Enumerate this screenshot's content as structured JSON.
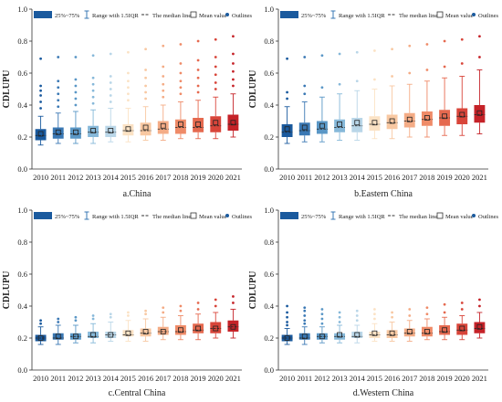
{
  "legend": {
    "box_label": "25%~75%",
    "whisker_label": "Range  with 1.5IQR",
    "median_label": "The median line",
    "mean_label": "Mean value",
    "outlier_label": "Outlines"
  },
  "chart_data": [
    {
      "type": "box",
      "caption": "a.China",
      "ylabel": "CDLUPU",
      "ylim": [
        0,
        1.0
      ],
      "yticks": [
        0.0,
        0.2,
        0.4,
        0.6,
        0.8,
        1.0
      ],
      "categories": [
        "2010",
        "2011",
        "2012",
        "2013",
        "2014",
        "2015",
        "2016",
        "2017",
        "2018",
        "2019",
        "2020",
        "2021"
      ],
      "colors": [
        "#1a5a9e",
        "#3a78b4",
        "#5a97c6",
        "#86b8d9",
        "#b9d6e8",
        "#fbe2c4",
        "#f8c8a2",
        "#f4ac86",
        "#ef8b68",
        "#e5694f",
        "#d8453a",
        "#c52228"
      ],
      "boxes": [
        {
          "q1": 0.18,
          "q3": 0.25,
          "median": 0.21,
          "mean": 0.22,
          "low": 0.15,
          "high": 0.33,
          "outliers": [
            0.38,
            0.42,
            0.46,
            0.49,
            0.52,
            0.69
          ]
        },
        {
          "q1": 0.19,
          "q3": 0.26,
          "median": 0.22,
          "mean": 0.23,
          "low": 0.16,
          "high": 0.35,
          "outliers": [
            0.39,
            0.43,
            0.47,
            0.51,
            0.55,
            0.7
          ]
        },
        {
          "q1": 0.19,
          "q3": 0.26,
          "median": 0.22,
          "mean": 0.23,
          "low": 0.16,
          "high": 0.36,
          "outliers": [
            0.4,
            0.44,
            0.48,
            0.52,
            0.56,
            0.7
          ]
        },
        {
          "q1": 0.2,
          "q3": 0.27,
          "median": 0.23,
          "mean": 0.24,
          "low": 0.16,
          "high": 0.37,
          "outliers": [
            0.41,
            0.45,
            0.49,
            0.53,
            0.57,
            0.71
          ]
        },
        {
          "q1": 0.2,
          "q3": 0.27,
          "median": 0.23,
          "mean": 0.24,
          "low": 0.17,
          "high": 0.38,
          "outliers": [
            0.42,
            0.46,
            0.5,
            0.54,
            0.58,
            0.72
          ]
        },
        {
          "q1": 0.21,
          "q3": 0.28,
          "median": 0.24,
          "mean": 0.25,
          "low": 0.17,
          "high": 0.38,
          "outliers": [
            0.43,
            0.47,
            0.51,
            0.55,
            0.6,
            0.73
          ]
        },
        {
          "q1": 0.21,
          "q3": 0.29,
          "median": 0.24,
          "mean": 0.26,
          "low": 0.18,
          "high": 0.39,
          "outliers": [
            0.44,
            0.48,
            0.52,
            0.57,
            0.62,
            0.75
          ]
        },
        {
          "q1": 0.22,
          "q3": 0.3,
          "median": 0.25,
          "mean": 0.27,
          "low": 0.18,
          "high": 0.4,
          "outliers": [
            0.45,
            0.49,
            0.53,
            0.58,
            0.64,
            0.77
          ]
        },
        {
          "q1": 0.22,
          "q3": 0.31,
          "median": 0.26,
          "mean": 0.28,
          "low": 0.19,
          "high": 0.42,
          "outliers": [
            0.47,
            0.51,
            0.55,
            0.6,
            0.66,
            0.78
          ]
        },
        {
          "q1": 0.23,
          "q3": 0.32,
          "median": 0.26,
          "mean": 0.28,
          "low": 0.19,
          "high": 0.43,
          "outliers": [
            0.48,
            0.52,
            0.57,
            0.62,
            0.68,
            0.8
          ]
        },
        {
          "q1": 0.23,
          "q3": 0.33,
          "median": 0.27,
          "mean": 0.29,
          "low": 0.19,
          "high": 0.45,
          "outliers": [
            0.5,
            0.54,
            0.59,
            0.64,
            0.7,
            0.81
          ]
        },
        {
          "q1": 0.24,
          "q3": 0.34,
          "median": 0.28,
          "mean": 0.29,
          "low": 0.2,
          "high": 0.47,
          "outliers": [
            0.52,
            0.56,
            0.61,
            0.66,
            0.72,
            0.83
          ]
        }
      ]
    },
    {
      "type": "box",
      "caption": "b.Eastern China",
      "ylabel": "CDLUPU",
      "ylim": [
        0,
        1.0
      ],
      "yticks": [
        0.0,
        0.2,
        0.4,
        0.6,
        0.8,
        1.0
      ],
      "categories": [
        "2010",
        "2011",
        "2012",
        "2013",
        "2014",
        "2015",
        "2016",
        "2017",
        "2018",
        "2019",
        "2020",
        "2021"
      ],
      "colors": [
        "#1a5a9e",
        "#3a78b4",
        "#5a97c6",
        "#86b8d9",
        "#b9d6e8",
        "#fbe2c4",
        "#f8c8a2",
        "#f4ac86",
        "#ef8b68",
        "#e5694f",
        "#d8453a",
        "#c52228"
      ],
      "boxes": [
        {
          "q1": 0.2,
          "q3": 0.28,
          "median": 0.23,
          "mean": 0.25,
          "low": 0.16,
          "high": 0.39,
          "outliers": [
            0.44,
            0.48,
            0.69
          ]
        },
        {
          "q1": 0.21,
          "q3": 0.29,
          "median": 0.24,
          "mean": 0.26,
          "low": 0.17,
          "high": 0.42,
          "outliers": [
            0.47,
            0.52,
            0.7
          ]
        },
        {
          "q1": 0.22,
          "q3": 0.3,
          "median": 0.25,
          "mean": 0.27,
          "low": 0.17,
          "high": 0.45,
          "outliers": [
            0.51,
            0.71
          ]
        },
        {
          "q1": 0.23,
          "q3": 0.31,
          "median": 0.26,
          "mean": 0.28,
          "low": 0.18,
          "high": 0.47,
          "outliers": [
            0.53,
            0.72
          ]
        },
        {
          "q1": 0.23,
          "q3": 0.32,
          "median": 0.27,
          "mean": 0.29,
          "low": 0.18,
          "high": 0.49,
          "outliers": [
            0.55,
            0.73
          ]
        },
        {
          "q1": 0.24,
          "q3": 0.33,
          "median": 0.28,
          "mean": 0.29,
          "low": 0.19,
          "high": 0.5,
          "outliers": [
            0.56,
            0.74
          ]
        },
        {
          "q1": 0.25,
          "q3": 0.34,
          "median": 0.29,
          "mean": 0.3,
          "low": 0.19,
          "high": 0.52,
          "outliers": [
            0.58,
            0.75
          ]
        },
        {
          "q1": 0.26,
          "q3": 0.35,
          "median": 0.3,
          "mean": 0.31,
          "low": 0.2,
          "high": 0.53,
          "outliers": [
            0.6,
            0.77
          ]
        },
        {
          "q1": 0.27,
          "q3": 0.36,
          "median": 0.31,
          "mean": 0.32,
          "low": 0.2,
          "high": 0.55,
          "outliers": [
            0.62,
            0.78
          ]
        },
        {
          "q1": 0.27,
          "q3": 0.37,
          "median": 0.32,
          "mean": 0.33,
          "low": 0.21,
          "high": 0.57,
          "outliers": [
            0.64,
            0.8
          ]
        },
        {
          "q1": 0.28,
          "q3": 0.38,
          "median": 0.33,
          "mean": 0.34,
          "low": 0.21,
          "high": 0.58,
          "outliers": [
            0.66,
            0.81
          ]
        },
        {
          "q1": 0.29,
          "q3": 0.4,
          "median": 0.34,
          "mean": 0.35,
          "low": 0.22,
          "high": 0.62,
          "outliers": [
            0.7,
            0.83
          ]
        }
      ]
    },
    {
      "type": "box",
      "caption": "c.Central China",
      "ylabel": "CDLUPU",
      "ylim": [
        0,
        1.0
      ],
      "yticks": [
        0.0,
        0.2,
        0.4,
        0.6,
        0.8,
        1.0
      ],
      "categories": [
        "2010",
        "2011",
        "2012",
        "2013",
        "2014",
        "2015",
        "2016",
        "2017",
        "2018",
        "2019",
        "2020",
        "2021"
      ],
      "colors": [
        "#1a5a9e",
        "#3a78b4",
        "#5a97c6",
        "#86b8d9",
        "#b9d6e8",
        "#fbe2c4",
        "#f8c8a2",
        "#f4ac86",
        "#ef8b68",
        "#e5694f",
        "#d8453a",
        "#c52228"
      ],
      "boxes": [
        {
          "q1": 0.18,
          "q3": 0.22,
          "median": 0.2,
          "mean": 0.2,
          "low": 0.16,
          "high": 0.27,
          "outliers": [
            0.29,
            0.31
          ]
        },
        {
          "q1": 0.19,
          "q3": 0.23,
          "median": 0.2,
          "mean": 0.21,
          "low": 0.16,
          "high": 0.28,
          "outliers": [
            0.3,
            0.32
          ]
        },
        {
          "q1": 0.19,
          "q3": 0.23,
          "median": 0.21,
          "mean": 0.21,
          "low": 0.17,
          "high": 0.28,
          "outliers": [
            0.31,
            0.33
          ]
        },
        {
          "q1": 0.2,
          "q3": 0.24,
          "median": 0.21,
          "mean": 0.22,
          "low": 0.17,
          "high": 0.29,
          "outliers": [
            0.32,
            0.34
          ]
        },
        {
          "q1": 0.2,
          "q3": 0.24,
          "median": 0.22,
          "mean": 0.22,
          "low": 0.18,
          "high": 0.3,
          "outliers": [
            0.33,
            0.35
          ]
        },
        {
          "q1": 0.21,
          "q3": 0.25,
          "median": 0.22,
          "mean": 0.23,
          "low": 0.18,
          "high": 0.31,
          "outliers": [
            0.34,
            0.36
          ]
        },
        {
          "q1": 0.21,
          "q3": 0.26,
          "median": 0.23,
          "mean": 0.24,
          "low": 0.18,
          "high": 0.32,
          "outliers": [
            0.35,
            0.37
          ]
        },
        {
          "q1": 0.22,
          "q3": 0.27,
          "median": 0.24,
          "mean": 0.24,
          "low": 0.19,
          "high": 0.33,
          "outliers": [
            0.36,
            0.39
          ]
        },
        {
          "q1": 0.22,
          "q3": 0.28,
          "median": 0.24,
          "mean": 0.25,
          "low": 0.19,
          "high": 0.34,
          "outliers": [
            0.37,
            0.4
          ]
        },
        {
          "q1": 0.23,
          "q3": 0.29,
          "median": 0.25,
          "mean": 0.26,
          "low": 0.19,
          "high": 0.35,
          "outliers": [
            0.38,
            0.42
          ]
        },
        {
          "q1": 0.23,
          "q3": 0.3,
          "median": 0.26,
          "mean": 0.26,
          "low": 0.2,
          "high": 0.36,
          "outliers": [
            0.4,
            0.44
          ]
        },
        {
          "q1": 0.24,
          "q3": 0.31,
          "median": 0.27,
          "mean": 0.27,
          "low": 0.2,
          "high": 0.38,
          "outliers": [
            0.42,
            0.46
          ]
        }
      ]
    },
    {
      "type": "box",
      "caption": "d.Western China",
      "ylabel": "CDLUPU",
      "ylim": [
        0,
        1.0
      ],
      "yticks": [
        0.0,
        0.2,
        0.4,
        0.6,
        0.8,
        1.0
      ],
      "categories": [
        "2010",
        "2011",
        "2012",
        "2013",
        "2014",
        "2015",
        "2016",
        "2017",
        "2018",
        "2019",
        "2020",
        "2021"
      ],
      "colors": [
        "#1a5a9e",
        "#3a78b4",
        "#5a97c6",
        "#86b8d9",
        "#b9d6e8",
        "#fbe2c4",
        "#f8c8a2",
        "#f4ac86",
        "#ef8b68",
        "#e5694f",
        "#d8453a",
        "#c52228"
      ],
      "boxes": [
        {
          "q1": 0.18,
          "q3": 0.22,
          "median": 0.2,
          "mean": 0.2,
          "low": 0.16,
          "high": 0.26,
          "outliers": [
            0.28,
            0.3,
            0.33,
            0.36,
            0.4
          ]
        },
        {
          "q1": 0.19,
          "q3": 0.23,
          "median": 0.2,
          "mean": 0.21,
          "low": 0.16,
          "high": 0.27,
          "outliers": [
            0.29,
            0.31,
            0.34,
            0.37,
            0.39
          ]
        },
        {
          "q1": 0.19,
          "q3": 0.23,
          "median": 0.21,
          "mean": 0.21,
          "low": 0.17,
          "high": 0.27,
          "outliers": [
            0.29,
            0.32,
            0.35,
            0.38
          ]
        },
        {
          "q1": 0.19,
          "q3": 0.23,
          "median": 0.21,
          "mean": 0.22,
          "low": 0.17,
          "high": 0.28,
          "outliers": [
            0.3,
            0.33,
            0.36
          ]
        },
        {
          "q1": 0.2,
          "q3": 0.24,
          "median": 0.21,
          "mean": 0.22,
          "low": 0.17,
          "high": 0.28,
          "outliers": [
            0.31,
            0.34,
            0.37
          ]
        },
        {
          "q1": 0.2,
          "q3": 0.24,
          "median": 0.22,
          "mean": 0.23,
          "low": 0.18,
          "high": 0.29,
          "outliers": [
            0.32,
            0.35,
            0.38
          ]
        },
        {
          "q1": 0.2,
          "q3": 0.25,
          "median": 0.22,
          "mean": 0.23,
          "low": 0.18,
          "high": 0.3,
          "outliers": [
            0.33,
            0.36
          ]
        },
        {
          "q1": 0.21,
          "q3": 0.26,
          "median": 0.23,
          "mean": 0.24,
          "low": 0.18,
          "high": 0.31,
          "outliers": [
            0.34,
            0.38
          ]
        },
        {
          "q1": 0.21,
          "q3": 0.27,
          "median": 0.23,
          "mean": 0.24,
          "low": 0.19,
          "high": 0.32,
          "outliers": [
            0.35,
            0.39
          ]
        },
        {
          "q1": 0.22,
          "q3": 0.28,
          "median": 0.24,
          "mean": 0.25,
          "low": 0.19,
          "high": 0.33,
          "outliers": [
            0.36,
            0.41
          ]
        },
        {
          "q1": 0.22,
          "q3": 0.29,
          "median": 0.25,
          "mean": 0.26,
          "low": 0.19,
          "high": 0.34,
          "outliers": [
            0.38,
            0.42
          ]
        },
        {
          "q1": 0.23,
          "q3": 0.3,
          "median": 0.26,
          "mean": 0.27,
          "low": 0.2,
          "high": 0.36,
          "outliers": [
            0.4,
            0.44
          ]
        }
      ]
    }
  ]
}
